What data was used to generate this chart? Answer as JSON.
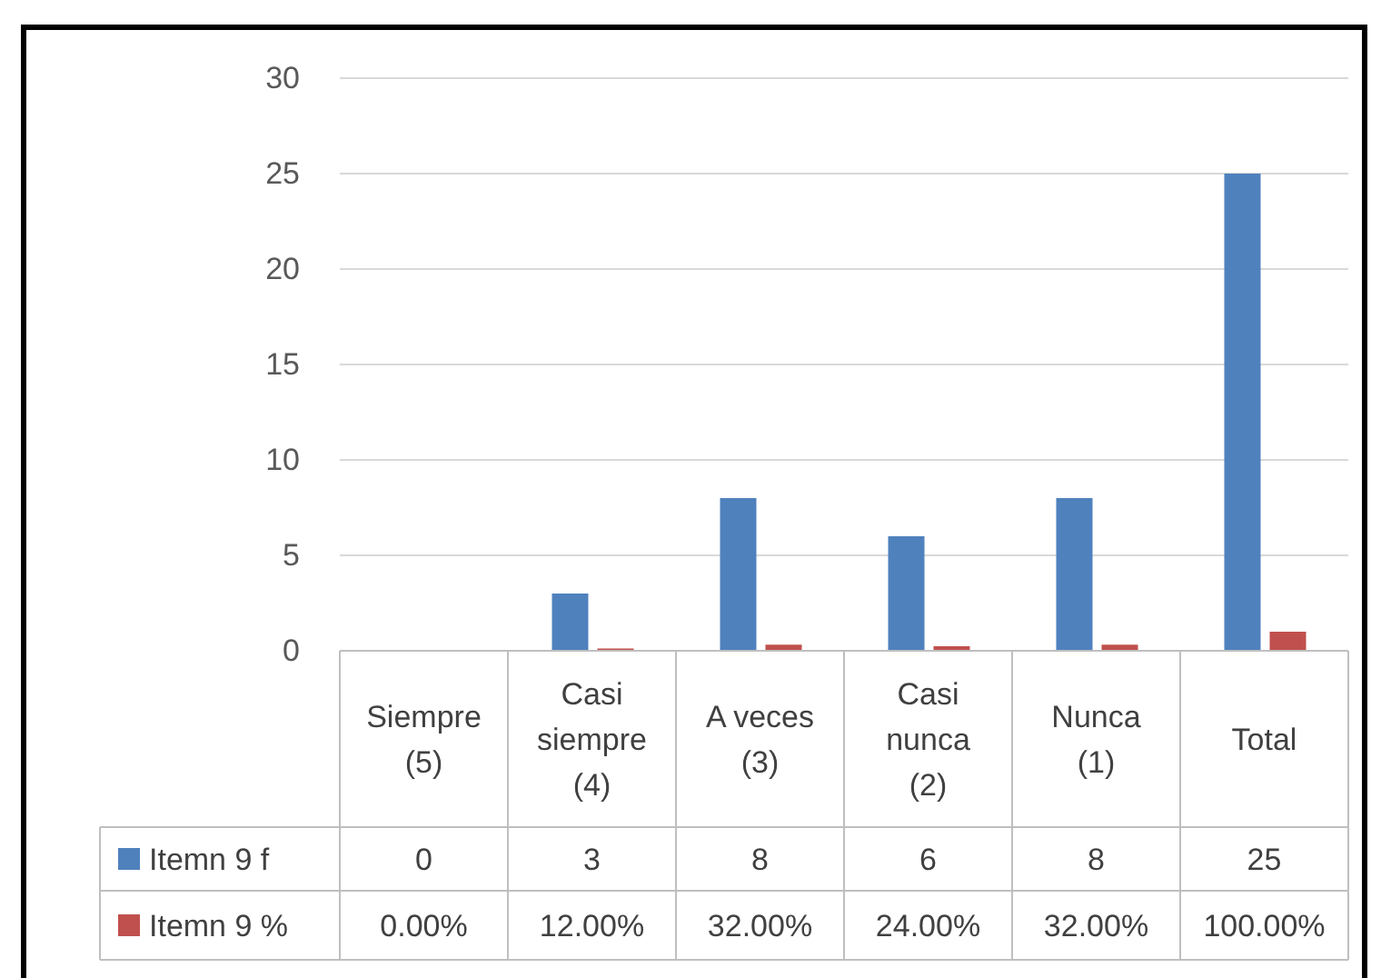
{
  "chart_data": {
    "type": "bar",
    "categories": [
      "Siempre (5)",
      "Casi siempre (4)",
      "A veces (3)",
      "Casi nunca (2)",
      "Nunca (1)",
      "Total"
    ],
    "series": [
      {
        "name": "Itemn 9 f",
        "color": "#4f81bd",
        "values": [
          0,
          3,
          8,
          6,
          8,
          25
        ],
        "value_labels": [
          "0",
          "3",
          "8",
          "6",
          "8",
          "25"
        ]
      },
      {
        "name": "Itemn 9 %",
        "color": "#c0504d",
        "values": [
          0,
          0.12,
          0.32,
          0.24,
          0.32,
          1
        ],
        "value_labels": [
          "0.00%",
          "12.00%",
          "32.00%",
          "24.00%",
          "32.00%",
          "100.00%"
        ]
      }
    ],
    "ylim": [
      0,
      30
    ],
    "yticks": [
      0,
      5,
      10,
      15,
      20,
      25,
      30
    ],
    "grid": "y",
    "legend": "bottom left"
  }
}
